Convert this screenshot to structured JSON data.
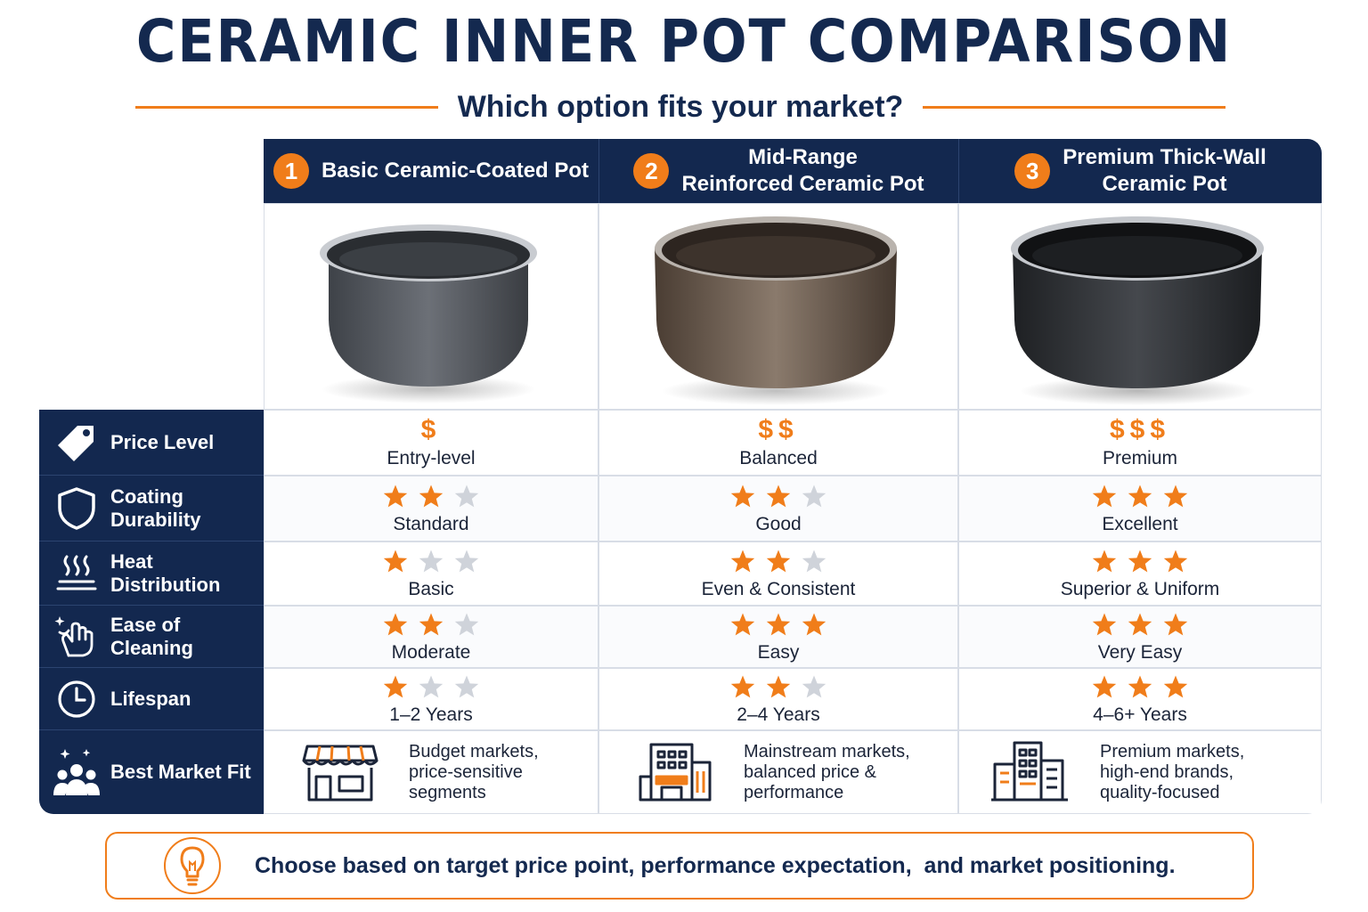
{
  "title": "CERAMIC INNER POT COMPARISON",
  "subtitle": "Which option fits your market?",
  "columns": [
    {
      "number": "1",
      "name_line1": "Basic Ceramic-Coated Pot",
      "name_line2": ""
    },
    {
      "number": "2",
      "name_line1": "Mid-Range",
      "name_line2": "Reinforced Ceramic Pot"
    },
    {
      "number": "3",
      "name_line1": "Premium Thick-Wall",
      "name_line2": "Ceramic Pot"
    }
  ],
  "rows": {
    "price": {
      "label": "Price Level",
      "icon": "price-tag-icon",
      "values": [
        {
          "symbol": "$",
          "text": "Entry-level"
        },
        {
          "symbol": "$$",
          "text": "Balanced"
        },
        {
          "symbol": "$$$",
          "text": "Premium"
        }
      ]
    },
    "durability": {
      "label": "Coating Durability",
      "icon": "shield-icon",
      "values": [
        {
          "stars": 2,
          "text": "Standard"
        },
        {
          "stars": 2,
          "text": "Good"
        },
        {
          "stars": 3,
          "text": "Excellent"
        }
      ]
    },
    "heat": {
      "label": "Heat Distribution",
      "icon": "heat-waves-icon",
      "values": [
        {
          "stars": 1,
          "text": "Basic"
        },
        {
          "stars": 2,
          "text": "Even & Consistent"
        },
        {
          "stars": 3,
          "text": "Superior & Uniform"
        }
      ]
    },
    "cleaning": {
      "label": "Ease of Cleaning",
      "icon": "cleaning-hand-icon",
      "values": [
        {
          "stars": 2,
          "text": "Moderate"
        },
        {
          "stars": 3,
          "text": "Easy"
        },
        {
          "stars": 3,
          "text": "Very Easy"
        }
      ]
    },
    "lifespan": {
      "label": "Lifespan",
      "icon": "clock-icon",
      "values": [
        {
          "stars": 1,
          "text": "1–2 Years"
        },
        {
          "stars": 2,
          "text": "2–4 Years"
        },
        {
          "stars": 3,
          "text": "4–6+ Years"
        }
      ]
    },
    "market": {
      "label": "Best Market Fit",
      "icon": "people-group-icon",
      "values": [
        {
          "icon": "storefront-icon",
          "lines": [
            "Budget markets,",
            "price-sensitive",
            "segments"
          ]
        },
        {
          "icon": "shopping-building-icon",
          "lines": [
            "Mainstream markets,",
            "balanced price &",
            "performance"
          ]
        },
        {
          "icon": "office-towers-icon",
          "lines": [
            "Premium markets,",
            "high-end brands,",
            "quality-focused"
          ]
        }
      ]
    }
  },
  "max_stars": 3,
  "footer": "Choose based on target price point, performance expectation,  and market positioning.",
  "colors": {
    "navy": "#13284f",
    "accent": "#f07d1a",
    "star_off": "#cfd3da"
  }
}
